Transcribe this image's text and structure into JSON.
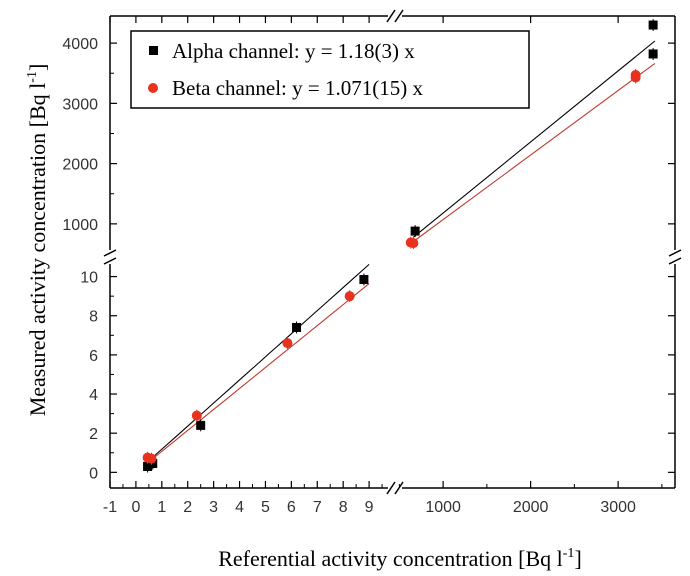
{
  "chart_data": {
    "type": "scatter",
    "title": "",
    "xlabel": "Referential activity concentration [Bq l",
    "xlabel_sup": "-1",
    "xlabel_end": "]",
    "ylabel": "Measured activity concentration [Bq l",
    "ylabel_sup": "-1",
    "ylabel_end": "]",
    "x_axis": {
      "broken": true,
      "low_range": [
        -1,
        10
      ],
      "high_range": [
        450,
        3650
      ],
      "low_ticks": [
        "-1",
        "0",
        "1",
        "2",
        "3",
        "4",
        "5",
        "6",
        "7",
        "8",
        "9"
      ],
      "high_ticks": [
        "1000",
        "2000",
        "3000"
      ]
    },
    "y_axis": {
      "broken": true,
      "low_range": [
        -0.8,
        11
      ],
      "high_range": [
        450,
        4450
      ],
      "low_ticks": [
        "0",
        "2",
        "4",
        "6",
        "8",
        "10"
      ],
      "high_ticks": [
        "1000",
        "2000",
        "3000",
        "4000"
      ]
    },
    "legend_position": "top-left",
    "grid": false,
    "series": [
      {
        "name": "Alpha channel: y = 1.18(3) x",
        "color": "#000000",
        "marker": "square",
        "points": [
          {
            "x": 0.45,
            "y": 0.3
          },
          {
            "x": 0.65,
            "y": 0.45
          },
          {
            "x": 2.5,
            "y": 2.4
          },
          {
            "x": 6.2,
            "y": 7.4
          },
          {
            "x": 8.8,
            "y": 9.85
          },
          {
            "x": 680,
            "y": 880
          },
          {
            "x": 3400,
            "y": 4300
          },
          {
            "x": 3400,
            "y": 3820
          }
        ]
      },
      {
        "name": "Beta channel: y = 1.071(15) x",
        "color": "#e8321e",
        "marker": "circle",
        "points": [
          {
            "x": 0.45,
            "y": 0.75
          },
          {
            "x": 0.6,
            "y": 0.7
          },
          {
            "x": 2.35,
            "y": 2.9
          },
          {
            "x": 5.85,
            "y": 6.6
          },
          {
            "x": 8.25,
            "y": 9.0
          },
          {
            "x": 630,
            "y": 690
          },
          {
            "x": 660,
            "y": 680
          },
          {
            "x": 3200,
            "y": 3470
          },
          {
            "x": 3200,
            "y": 3430
          }
        ]
      }
    ],
    "fits": [
      {
        "series": "Alpha channel: y = 1.18(3) x",
        "slope": 1.18,
        "color": "#000000"
      },
      {
        "series": "Beta channel: y = 1.071(15) x",
        "slope": 1.071,
        "color": "#c0392b"
      }
    ]
  }
}
